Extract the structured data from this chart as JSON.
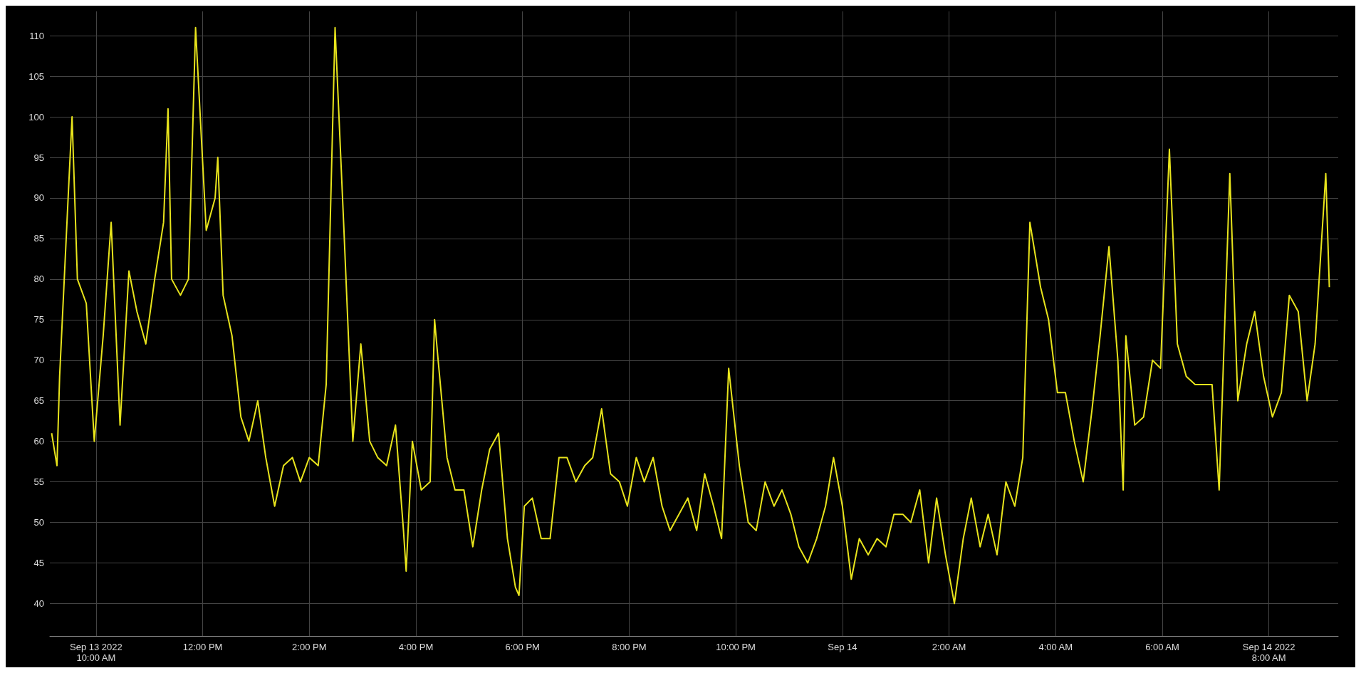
{
  "chart_data": {
    "type": "line",
    "xlim": [
      "2022-09-13T09:08",
      "2022-09-14T09:18"
    ],
    "ylim": [
      36,
      113
    ],
    "xticks": [
      {
        "value": "2022-09-13T10:00",
        "label": "Sep 13 2022\n10:00 AM"
      },
      {
        "value": "2022-09-13T12:00",
        "label": "12:00 PM"
      },
      {
        "value": "2022-09-13T14:00",
        "label": "2:00 PM"
      },
      {
        "value": "2022-09-13T16:00",
        "label": "4:00 PM"
      },
      {
        "value": "2022-09-13T18:00",
        "label": "6:00 PM"
      },
      {
        "value": "2022-09-13T20:00",
        "label": "8:00 PM"
      },
      {
        "value": "2022-09-13T22:00",
        "label": "10:00 PM"
      },
      {
        "value": "2022-09-14T00:00",
        "label": "Sep 14"
      },
      {
        "value": "2022-09-14T02:00",
        "label": "2:00 AM"
      },
      {
        "value": "2022-09-14T04:00",
        "label": "4:00 AM"
      },
      {
        "value": "2022-09-14T06:00",
        "label": "6:00 AM"
      },
      {
        "value": "2022-09-14T08:00",
        "label": "Sep 14 2022\n8:00 AM"
      }
    ],
    "yticks": [
      40,
      45,
      50,
      55,
      60,
      65,
      70,
      75,
      80,
      85,
      90,
      95,
      100,
      105,
      110
    ],
    "grid": true,
    "series": [
      {
        "color": "#e8e41c",
        "x": [
          "2022-09-13T09:10",
          "2022-09-13T09:16",
          "2022-09-13T09:19",
          "2022-09-13T09:29",
          "2022-09-13T09:33",
          "2022-09-13T09:39",
          "2022-09-13T09:49",
          "2022-09-13T09:58",
          "2022-09-13T10:08",
          "2022-09-13T10:17",
          "2022-09-13T10:27",
          "2022-09-13T10:37",
          "2022-09-13T10:46",
          "2022-09-13T10:56",
          "2022-09-13T11:06",
          "2022-09-13T11:16",
          "2022-09-13T11:21",
          "2022-09-13T11:25",
          "2022-09-13T11:35",
          "2022-09-13T11:44",
          "2022-09-13T11:52",
          "2022-09-13T12:04",
          "2022-09-13T12:14",
          "2022-09-13T12:17",
          "2022-09-13T12:23",
          "2022-09-13T12:33",
          "2022-09-13T12:43",
          "2022-09-13T12:52",
          "2022-09-13T13:02",
          "2022-09-13T13:11",
          "2022-09-13T13:21",
          "2022-09-13T13:31",
          "2022-09-13T13:41",
          "2022-09-13T13:50",
          "2022-09-13T14:00",
          "2022-09-13T14:10",
          "2022-09-13T14:19",
          "2022-09-13T14:29",
          "2022-09-13T14:39",
          "2022-09-13T14:49",
          "2022-09-13T14:58",
          "2022-09-13T15:08",
          "2022-09-13T15:17",
          "2022-09-13T15:27",
          "2022-09-13T15:37",
          "2022-09-13T15:46",
          "2022-09-13T15:49",
          "2022-09-13T15:56",
          "2022-09-13T16:06",
          "2022-09-13T16:16",
          "2022-09-13T16:21",
          "2022-09-13T16:25",
          "2022-09-13T16:35",
          "2022-09-13T16:44",
          "2022-09-13T16:54",
          "2022-09-13T17:04",
          "2022-09-13T17:14",
          "2022-09-13T17:23",
          "2022-09-13T17:33",
          "2022-09-13T17:43",
          "2022-09-13T17:52",
          "2022-09-13T17:56",
          "2022-09-13T18:02",
          "2022-09-13T18:11",
          "2022-09-13T18:21",
          "2022-09-13T18:31",
          "2022-09-13T18:41",
          "2022-09-13T18:50",
          "2022-09-13T19:00",
          "2022-09-13T19:10",
          "2022-09-13T19:19",
          "2022-09-13T19:29",
          "2022-09-13T19:39",
          "2022-09-13T19:49",
          "2022-09-13T19:58",
          "2022-09-13T20:08",
          "2022-09-13T20:17",
          "2022-09-13T20:27",
          "2022-09-13T20:37",
          "2022-09-13T20:46",
          "2022-09-13T20:56",
          "2022-09-13T21:06",
          "2022-09-13T21:16",
          "2022-09-13T21:25",
          "2022-09-13T21:35",
          "2022-09-13T21:44",
          "2022-09-13T21:52",
          "2022-09-13T22:04",
          "2022-09-13T22:14",
          "2022-09-13T22:23",
          "2022-09-13T22:33",
          "2022-09-13T22:43",
          "2022-09-13T22:52",
          "2022-09-13T23:02",
          "2022-09-13T23:11",
          "2022-09-13T23:21",
          "2022-09-13T23:31",
          "2022-09-13T23:41",
          "2022-09-13T23:50",
          "2022-09-14T00:00",
          "2022-09-14T00:10",
          "2022-09-14T00:19",
          "2022-09-14T00:29",
          "2022-09-14T00:39",
          "2022-09-14T00:49",
          "2022-09-14T00:58",
          "2022-09-14T01:08",
          "2022-09-14T01:17",
          "2022-09-14T01:27",
          "2022-09-14T01:37",
          "2022-09-14T01:46",
          "2022-09-14T01:56",
          "2022-09-14T02:06",
          "2022-09-14T02:16",
          "2022-09-14T02:25",
          "2022-09-14T02:35",
          "2022-09-14T02:44",
          "2022-09-14T02:54",
          "2022-09-14T03:04",
          "2022-09-14T03:14",
          "2022-09-14T03:23",
          "2022-09-14T03:31",
          "2022-09-14T03:43",
          "2022-09-14T03:52",
          "2022-09-14T04:02",
          "2022-09-14T04:11",
          "2022-09-14T04:21",
          "2022-09-14T04:31",
          "2022-09-14T04:41",
          "2022-09-14T04:50",
          "2022-09-14T05:00",
          "2022-09-14T05:10",
          "2022-09-14T05:16",
          "2022-09-14T05:19",
          "2022-09-14T05:29",
          "2022-09-14T05:39",
          "2022-09-14T05:49",
          "2022-09-14T05:58",
          "2022-09-14T06:08",
          "2022-09-14T06:17",
          "2022-09-14T06:27",
          "2022-09-14T06:37",
          "2022-09-14T06:46",
          "2022-09-14T06:56",
          "2022-09-14T07:04",
          "2022-09-14T07:16",
          "2022-09-14T07:25",
          "2022-09-14T07:35",
          "2022-09-14T07:44",
          "2022-09-14T07:54",
          "2022-09-14T08:04",
          "2022-09-14T08:14",
          "2022-09-14T08:23",
          "2022-09-14T08:33",
          "2022-09-14T08:43",
          "2022-09-14T08:52",
          "2022-09-14T09:04",
          "2022-09-14T09:08"
        ],
        "values": [
          61,
          57,
          68,
          91,
          100,
          80,
          77,
          60,
          73,
          87,
          62,
          81,
          76,
          72,
          80,
          87,
          101,
          80,
          78,
          80,
          111,
          86,
          90,
          95,
          78,
          73,
          63,
          60,
          65,
          58,
          52,
          57,
          58,
          55,
          58,
          57,
          67,
          111,
          86,
          60,
          72,
          60,
          58,
          57,
          62,
          49,
          44,
          60,
          54,
          55,
          75,
          70,
          58,
          54,
          54,
          47,
          54,
          59,
          61,
          48,
          42,
          41,
          52,
          53,
          48,
          48,
          58,
          58,
          55,
          57,
          58,
          64,
          56,
          55,
          52,
          58,
          55,
          58,
          52,
          49,
          51,
          53,
          49,
          56,
          52,
          48,
          69,
          57,
          50,
          49,
          55,
          52,
          54,
          51,
          47,
          45,
          48,
          52,
          58,
          52,
          43,
          48,
          46,
          48,
          47,
          51,
          51,
          50,
          54,
          45,
          53,
          46,
          40,
          48,
          53,
          47,
          51,
          46,
          55,
          52,
          58,
          87,
          79,
          75,
          66,
          66,
          60,
          55,
          64,
          73,
          84,
          70,
          54,
          73,
          62,
          63,
          70,
          69,
          96,
          72,
          68,
          67,
          67,
          67,
          54,
          93,
          65,
          72,
          76,
          68,
          63,
          66,
          78,
          76,
          65,
          72,
          93,
          79
        ]
      }
    ]
  }
}
